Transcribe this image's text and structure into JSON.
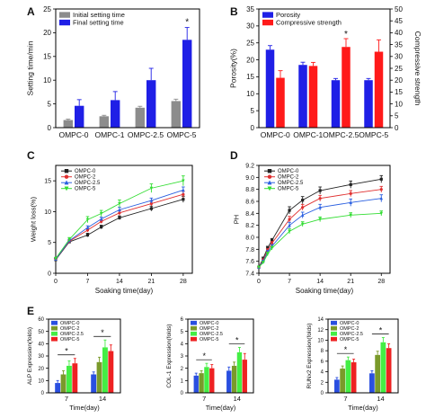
{
  "chart_data": [
    {
      "panel": "A",
      "type": "bar",
      "categories": [
        "OMPC-0",
        "OMPC-1",
        "OMPC-2.5",
        "OMPC-5"
      ],
      "ylabel": "Setting time/min",
      "ylim": [
        0,
        25
      ],
      "yticks": [
        0,
        5,
        10,
        15,
        20,
        25
      ],
      "legend_position": "top-left",
      "series": [
        {
          "name": "Initial setting time",
          "color": "#8c8c8c",
          "values": [
            1.6,
            2.4,
            4.2,
            5.6
          ],
          "errors": [
            0.2,
            0.2,
            0.3,
            0.4
          ]
        },
        {
          "name": "Final setting time",
          "color": "#1f1fe6",
          "values": [
            4.6,
            5.8,
            10.0,
            18.5
          ],
          "errors": [
            1.3,
            1.8,
            2.5,
            2.6
          ]
        }
      ],
      "annotations": [
        {
          "text": "*",
          "category": 3,
          "series": 1
        }
      ]
    },
    {
      "panel": "B",
      "type": "bar",
      "categories": [
        "OMPC-0",
        "OMPC-1",
        "OMPC-2.5",
        "OMPC-5"
      ],
      "ylabel": "Porosity(%)",
      "ylabel_right": "Compressive strength",
      "ylim": [
        0,
        35
      ],
      "yticks": [
        0,
        5,
        10,
        15,
        20,
        25,
        30,
        35
      ],
      "ylim_right": [
        0,
        50
      ],
      "yticks_right": [
        0,
        5,
        10,
        15,
        20,
        25,
        30,
        35,
        40,
        45,
        50
      ],
      "legend_position": "top-left",
      "series": [
        {
          "name": "Porosity",
          "color": "#1f1fe6",
          "axis": "left",
          "values": [
            23,
            18.5,
            14,
            14
          ],
          "errors": [
            1.2,
            0.8,
            0.5,
            0.5
          ]
        },
        {
          "name": "Compressive strength",
          "color": "#ff1a1a",
          "axis": "right",
          "values": [
            21,
            26,
            34,
            32
          ],
          "errors": [
            3,
            1.5,
            3.5,
            5
          ]
        }
      ],
      "annotations": [
        {
          "text": "*",
          "category": 2,
          "series": 1
        }
      ]
    },
    {
      "panel": "C",
      "type": "line",
      "x": [
        0,
        3,
        7,
        10,
        14,
        21,
        28
      ],
      "xticks": [
        0,
        7,
        14,
        21,
        28
      ],
      "xlabel": "Soaking time(day)",
      "ylabel": "Weight loss(%)",
      "xlim": [
        0,
        30
      ],
      "ylim": [
        0,
        17.5
      ],
      "yticks": [
        0,
        5,
        10,
        15
      ],
      "legend_position": "top-left",
      "series": [
        {
          "name": "OMPC-0",
          "color": "#222222",
          "marker": "square",
          "values": [
            2.2,
            5.1,
            6.2,
            7.5,
            9.0,
            10.5,
            12.0
          ],
          "errors": [
            0.2,
            0.2,
            0.3,
            0.3,
            0.3,
            0.4,
            0.5
          ]
        },
        {
          "name": "OMPC-2",
          "color": "#e03030",
          "marker": "circle",
          "values": [
            2.3,
            5.2,
            7.0,
            8.4,
            9.8,
            11.3,
            12.8
          ],
          "errors": [
            0.2,
            0.2,
            0.3,
            0.3,
            0.4,
            0.4,
            0.5
          ]
        },
        {
          "name": "OMPC-2.5",
          "color": "#2a5fe0",
          "marker": "triangle",
          "values": [
            2.3,
            5.3,
            7.4,
            8.8,
            10.3,
            11.8,
            13.5
          ],
          "errors": [
            0.2,
            0.2,
            0.3,
            0.3,
            0.4,
            0.4,
            0.5
          ]
        },
        {
          "name": "OMPC-5",
          "color": "#33dd33",
          "marker": "triangle-down",
          "values": [
            2.4,
            5.5,
            8.7,
            9.7,
            11.3,
            13.8,
            15.0
          ],
          "errors": [
            0.2,
            0.3,
            0.5,
            0.5,
            0.6,
            0.7,
            0.8
          ]
        }
      ]
    },
    {
      "panel": "D",
      "type": "line",
      "x": [
        0,
        1,
        2,
        3,
        7,
        10,
        14,
        21,
        28
      ],
      "xticks": [
        0,
        7,
        14,
        21,
        28
      ],
      "xlabel": "Soaking time(day)",
      "ylabel": "PH",
      "xlim": [
        0,
        30
      ],
      "ylim": [
        7.4,
        9.2
      ],
      "yticks": [
        7.4,
        7.6,
        7.8,
        8.0,
        8.2,
        8.4,
        8.6,
        8.8,
        9.0,
        9.2
      ],
      "legend_position": "top-left",
      "series": [
        {
          "name": "OMPC-0",
          "color": "#222222",
          "marker": "square",
          "values": [
            7.5,
            7.65,
            7.82,
            7.95,
            8.45,
            8.62,
            8.78,
            8.88,
            8.97
          ],
          "errors": [
            0.02,
            0.02,
            0.03,
            0.03,
            0.06,
            0.06,
            0.06,
            0.06,
            0.06
          ]
        },
        {
          "name": "OMPC-2",
          "color": "#e03030",
          "marker": "circle",
          "values": [
            7.5,
            7.62,
            7.78,
            7.9,
            8.3,
            8.5,
            8.65,
            8.73,
            8.8
          ],
          "errors": [
            0.02,
            0.02,
            0.03,
            0.03,
            0.05,
            0.05,
            0.05,
            0.05,
            0.05
          ]
        },
        {
          "name": "OMPC-2.5",
          "color": "#2a5fe0",
          "marker": "triangle",
          "values": [
            7.5,
            7.6,
            7.75,
            7.85,
            8.2,
            8.37,
            8.5,
            8.58,
            8.65
          ],
          "errors": [
            0.02,
            0.02,
            0.03,
            0.03,
            0.05,
            0.05,
            0.05,
            0.06,
            0.06
          ]
        },
        {
          "name": "OMPC-5",
          "color": "#33dd33",
          "marker": "triangle-down",
          "values": [
            7.5,
            7.58,
            7.72,
            7.82,
            8.1,
            8.22,
            8.3,
            8.37,
            8.4
          ],
          "errors": [
            0.02,
            0.02,
            0.03,
            0.03,
            0.04,
            0.04,
            0.04,
            0.04,
            0.04
          ]
        }
      ]
    },
    {
      "panel": "E",
      "type": "bar",
      "categories": [
        "7",
        "14"
      ],
      "xlabel": "Time(day)",
      "ylabel": "ALP Expression(folds)",
      "ylim": [
        0,
        60
      ],
      "yticks": [
        0,
        10,
        20,
        30,
        40,
        50,
        60
      ],
      "legend_position": "top-left",
      "series": [
        {
          "name": "OMPC-0",
          "color": "#2a4fe0",
          "values": [
            8,
            15
          ],
          "errors": [
            2,
            2
          ]
        },
        {
          "name": "OMPC-2",
          "color": "#7a9a2a",
          "values": [
            15,
            25
          ],
          "errors": [
            3,
            4
          ]
        },
        {
          "name": "OMPC-2.5",
          "color": "#44ee44",
          "values": [
            22,
            37
          ],
          "errors": [
            4,
            6
          ]
        },
        {
          "name": "OMPC-5",
          "color": "#ee2222",
          "values": [
            24,
            34
          ],
          "errors": [
            4,
            5
          ]
        }
      ],
      "annotations": [
        {
          "text": "*",
          "category": 0
        },
        {
          "text": "*",
          "category": 1
        }
      ]
    },
    {
      "panel": "E",
      "type": "bar",
      "categories": [
        "7",
        "14"
      ],
      "xlabel": "Time(day)",
      "ylabel": "COL-1 Expression(folds)",
      "ylim": [
        0,
        6
      ],
      "yticks": [
        0,
        1,
        2,
        3,
        4,
        5,
        6
      ],
      "legend_position": "top-left",
      "series": [
        {
          "name": "OMPC-0",
          "color": "#2a4fe0",
          "values": [
            1.4,
            1.8
          ],
          "errors": [
            0.2,
            0.3
          ]
        },
        {
          "name": "OMPC-2",
          "color": "#7a9a2a",
          "values": [
            1.6,
            2.2
          ],
          "errors": [
            0.2,
            0.3
          ]
        },
        {
          "name": "OMPC-2.5",
          "color": "#44ee44",
          "values": [
            2.1,
            3.3
          ],
          "errors": [
            0.3,
            0.4
          ]
        },
        {
          "name": "OMPC-5",
          "color": "#ee2222",
          "values": [
            2.0,
            2.7
          ],
          "errors": [
            0.3,
            0.5
          ]
        }
      ],
      "annotations": [
        {
          "text": "*",
          "category": 0
        },
        {
          "text": "*",
          "category": 1
        }
      ]
    },
    {
      "panel": "E",
      "type": "bar",
      "categories": [
        "7",
        "14"
      ],
      "xlabel": "Time(day)",
      "ylabel": "RUNx2 Expression(folds)",
      "ylim": [
        0,
        14
      ],
      "yticks": [
        0,
        2,
        4,
        6,
        8,
        10,
        12,
        14
      ],
      "legend_position": "top-left",
      "series": [
        {
          "name": "OMPC-0",
          "color": "#2a4fe0",
          "values": [
            2.5,
            3.7
          ],
          "errors": [
            0.4,
            0.5
          ]
        },
        {
          "name": "OMPC-2",
          "color": "#7a9a2a",
          "values": [
            4.6,
            7.2
          ],
          "errors": [
            0.5,
            0.7
          ]
        },
        {
          "name": "OMPC-2.5",
          "color": "#44ee44",
          "values": [
            6.2,
            9.6
          ],
          "errors": [
            0.6,
            0.9
          ]
        },
        {
          "name": "OMPC-5",
          "color": "#ee2222",
          "values": [
            5.8,
            8.5
          ],
          "errors": [
            0.6,
            0.8
          ]
        }
      ],
      "annotations": [
        {
          "text": "*",
          "category": 0
        },
        {
          "text": "*",
          "category": 1
        }
      ]
    }
  ],
  "panel_labels": [
    "A",
    "B",
    "C",
    "D",
    "E"
  ]
}
